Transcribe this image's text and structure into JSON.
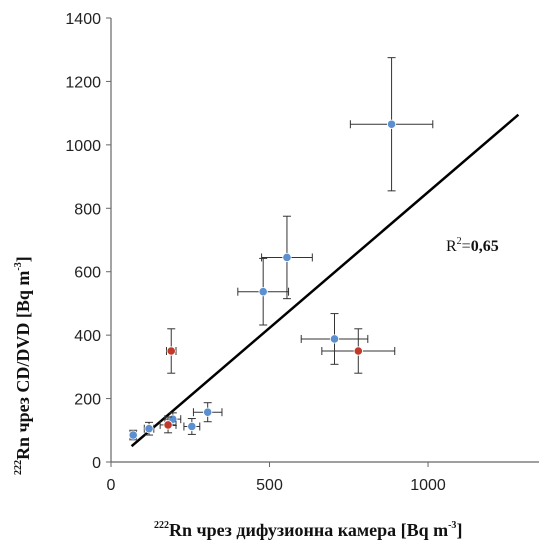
{
  "chart_data": {
    "type": "scatter",
    "xlabel": {
      "sup": "222",
      "text": "Rn чрез дифузионна камера [Bq m",
      "sup2": "-3",
      "end": "]"
    },
    "ylabel": {
      "sup": "222",
      "text": "Rn чрез CD/DVD [Bq m",
      "sup2": "-3",
      "end": "]"
    },
    "xlim": [
      0,
      1350
    ],
    "ylim": [
      0,
      1400
    ],
    "xticks": [
      0,
      500,
      1000
    ],
    "yticks": [
      0,
      200,
      400,
      600,
      800,
      1000,
      1200,
      1400
    ],
    "grid": false,
    "annotation": {
      "prefix": "R",
      "sup": "2",
      "eq": "=",
      "value": "0,65"
    },
    "trendline": {
      "x": [
        65,
        1285
      ],
      "y": [
        50,
        1095
      ]
    },
    "colors": {
      "blue": "#5b8fd0",
      "red": "#c0392b",
      "errorbar": "#333333",
      "line": "#000000",
      "axis": "#666666"
    },
    "series": [
      {
        "color": "blue",
        "points": [
          {
            "x": 70,
            "y": 85,
            "xerr": 10,
            "yerr": 15
          },
          {
            "x": 120,
            "y": 105,
            "xerr": 15,
            "yerr": 20
          },
          {
            "x": 195,
            "y": 135,
            "xerr": 25,
            "yerr": 20
          },
          {
            "x": 255,
            "y": 112,
            "xerr": 25,
            "yerr": 25
          },
          {
            "x": 305,
            "y": 157,
            "xerr": 45,
            "yerr": 30
          },
          {
            "x": 480,
            "y": 537,
            "xerr": 80,
            "yerr": 105
          },
          {
            "x": 555,
            "y": 645,
            "xerr": 80,
            "yerr": 130
          },
          {
            "x": 705,
            "y": 388,
            "xerr": 105,
            "yerr": 80
          },
          {
            "x": 885,
            "y": 1065,
            "xerr": 130,
            "yerr": 210
          }
        ]
      },
      {
        "color": "red",
        "points": [
          {
            "x": 190,
            "y": 350,
            "xerr": 15,
            "yerr": 70
          },
          {
            "x": 180,
            "y": 117,
            "xerr": 25,
            "yerr": 25
          },
          {
            "x": 780,
            "y": 350,
            "xerr": 115,
            "yerr": 70
          }
        ]
      }
    ]
  }
}
